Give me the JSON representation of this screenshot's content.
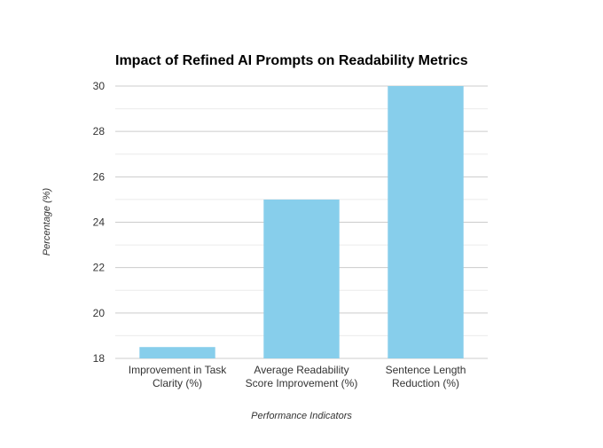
{
  "chart_data": {
    "type": "bar",
    "title": "Impact of Refined AI Prompts on Readability Metrics",
    "xlabel": "Performance Indicators",
    "ylabel": "Percentage (%)",
    "categories": [
      [
        "Improvement in Task",
        "Clarity (%)"
      ],
      [
        "Average Readability",
        "Score Improvement (%)"
      ],
      [
        "Sentence Length",
        "Reduction (%)"
      ]
    ],
    "values": [
      18.5,
      25,
      30
    ],
    "ylim": [
      18,
      30
    ],
    "yticks": [
      18,
      20,
      22,
      24,
      26,
      28,
      30
    ],
    "grid": true,
    "legend": "none",
    "bar_color": "#87ceeb"
  }
}
